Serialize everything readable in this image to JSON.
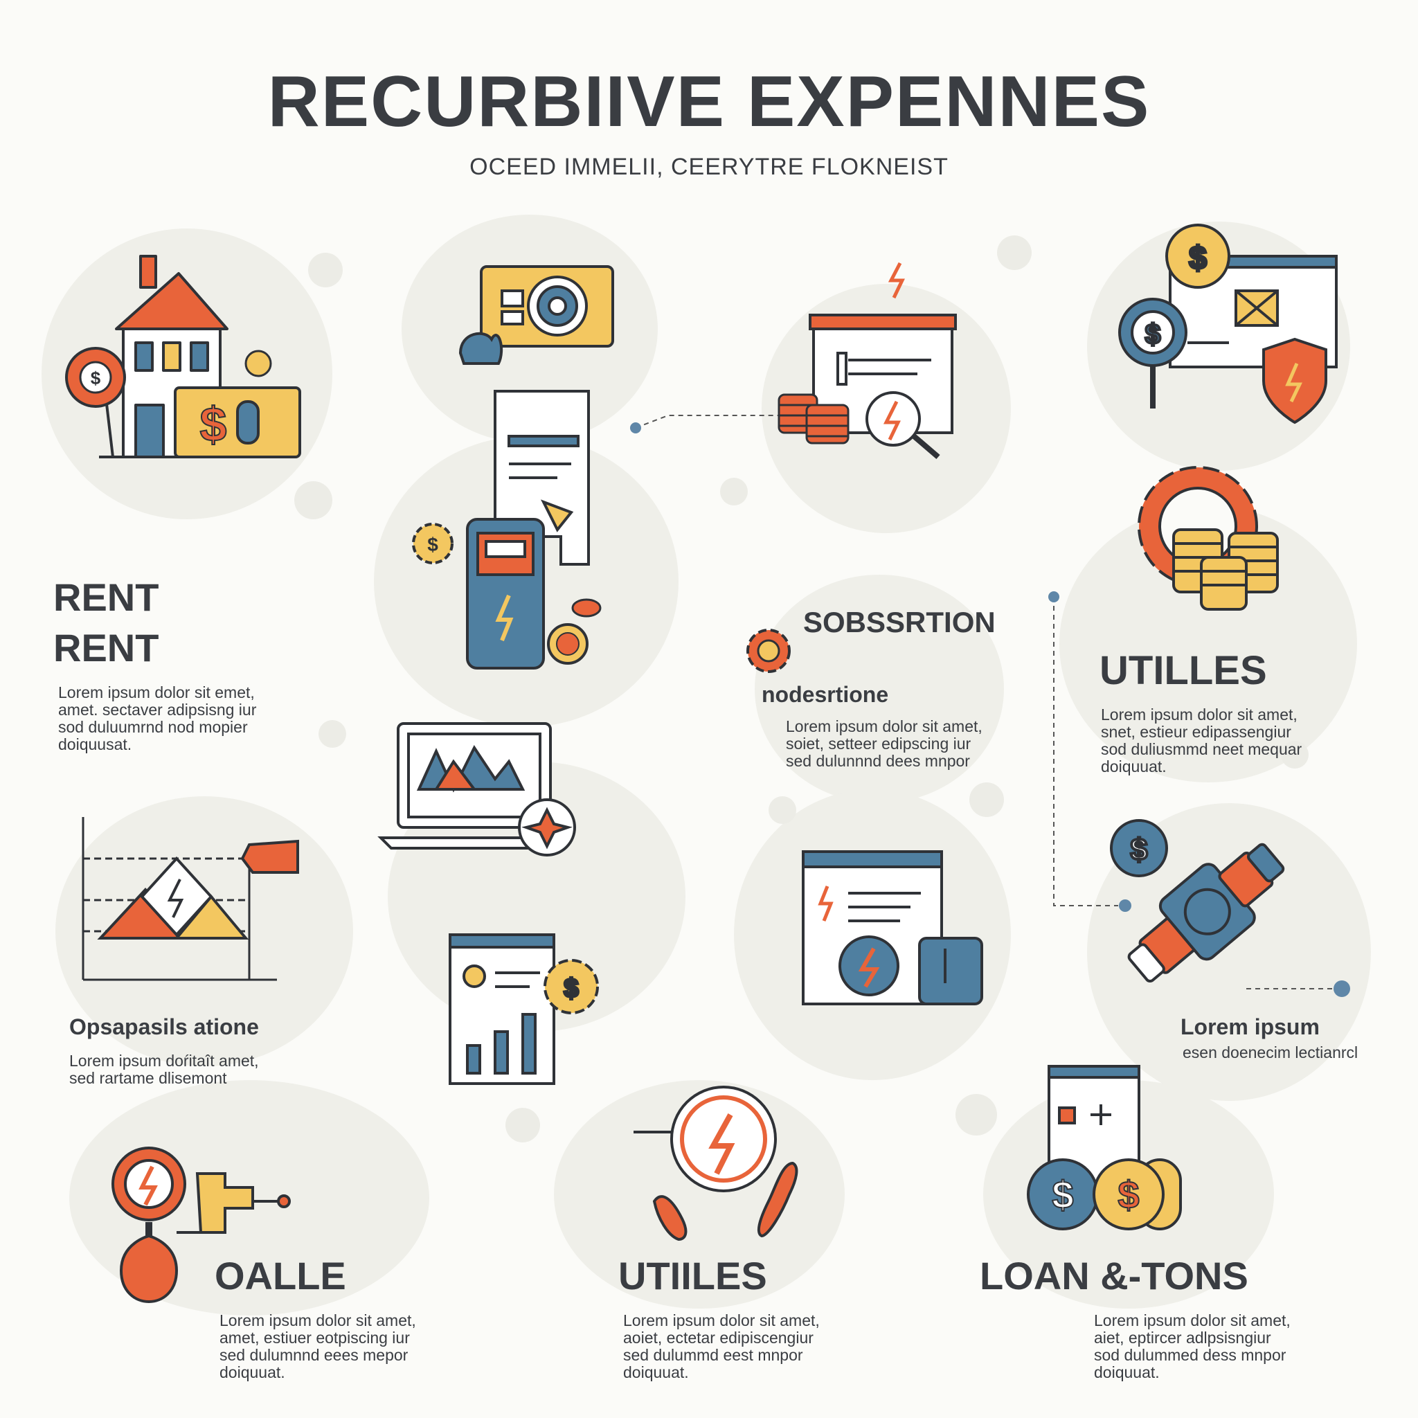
{
  "header": {
    "title": "RECURBIIVE EXPENNES",
    "subtitle": "OCEED IMMELII, CEERYTRE FLOKNEIST"
  },
  "sections": {
    "rent": {
      "heading_1": "RENT",
      "heading_2": "RENT",
      "body": "Lorem ipsum dolor sit emet,\namet. sectaver adipsisng iur\nsod duluumrnd nod mopier\ndoiquusat."
    },
    "subscription": {
      "heading": "SOBSSRTION",
      "subheading": "nodesrtione",
      "body": "Lorem ipsum dolor sit amet,\nsoiet, setteer edipscing iur\nsed dulunnnd dees mnpor"
    },
    "utilities_right": {
      "heading": "UTILLES",
      "body": "Lorem ipsum dolor sit amet,\nsnet, estieur edipassengiur\nsod duliusmmd neet mequar\ndoiquuat."
    },
    "operations": {
      "heading": "Opsapasils atione",
      "body": "Lorem ipsum doŕitaît amet,\nsed rartame dlisemont"
    },
    "lorem_right": {
      "heading": "Lorem ipsum",
      "body": "esen doenecim lectianrcl"
    },
    "oalle": {
      "heading": "OALLE",
      "body": "Lorem ipsum dolor sit amet,\namet, estiuer eotpiscing iur\nsed dulumnnd eees mepor\ndoiquuat."
    },
    "utilities_bottom": {
      "heading": "UTIILES",
      "body": "Lorem ipsum dolor sit amet,\naoiet, ectetar edipiscengiur\nsed dulummd eest mnpor\ndoiquuat."
    },
    "loans": {
      "heading": "LOAN &-TONS",
      "body": "Lorem ipsum dolor sit amet,\naiet, eptircer adlpsisngiur\nsod dulummed dess mnpor\ndoiquuat."
    }
  },
  "colors": {
    "orange": "#e8643a",
    "yellow": "#f3c760",
    "blue": "#4f7fa0",
    "dark": "#3a3d42",
    "blob": "#efefe9"
  },
  "icons": [
    "house-icon",
    "dollar-coin-icon",
    "dollar-card-icon",
    "camera-card-icon",
    "document-icon",
    "phone-icon",
    "gear-dollar-icon",
    "browser-bolt-icon",
    "coin-stack-icon",
    "magnifier-bolt-icon",
    "dollar-magnifier-icon",
    "shield-bolt-icon",
    "gear-coins-icon",
    "laptop-chart-icon",
    "chart-mountain-icon",
    "report-gear-icon",
    "browser-bolt-window-icon",
    "meter-icon",
    "bolt-circle-icon",
    "gauge-bolt-icon",
    "dollar-coins-icon",
    "pipe-valve-icon"
  ]
}
